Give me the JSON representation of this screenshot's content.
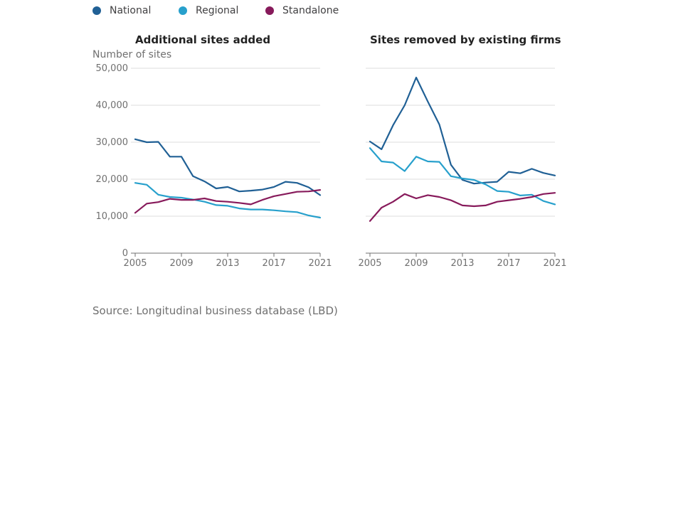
{
  "legend": [
    {
      "name": "National",
      "color": "#206095"
    },
    {
      "name": "Regional",
      "color": "#27a0cc"
    },
    {
      "name": "Standalone",
      "color": "#871a5b"
    }
  ],
  "source": "Source: Longitudinal business database (LBD)",
  "chart_data": [
    {
      "type": "line",
      "title": "Additional sites added",
      "ylabel": "Number of sites",
      "ylim": [
        0,
        50000
      ],
      "yticks": [
        0,
        10000,
        20000,
        30000,
        40000,
        50000
      ],
      "ytick_labels": [
        "0",
        "10,000",
        "20,000",
        "30,000",
        "40,000",
        "50,000"
      ],
      "xticks": [
        2005,
        2009,
        2013,
        2017,
        2021
      ],
      "x": [
        2005,
        2006,
        2007,
        2008,
        2009,
        2010,
        2011,
        2012,
        2013,
        2014,
        2015,
        2016,
        2017,
        2018,
        2019,
        2020,
        2021
      ],
      "grid": true,
      "series": [
        {
          "name": "National",
          "color": "#206095",
          "values": [
            30800,
            30000,
            30100,
            26100,
            26100,
            20800,
            19400,
            17500,
            17900,
            16700,
            16900,
            17200,
            17900,
            19300,
            19000,
            17800,
            15700
          ]
        },
        {
          "name": "Regional",
          "color": "#27a0cc",
          "values": [
            19000,
            18500,
            15800,
            15200,
            15000,
            14500,
            13900,
            13000,
            12800,
            12100,
            11800,
            11800,
            11600,
            11300,
            11100,
            10200,
            9600
          ]
        },
        {
          "name": "Standalone",
          "color": "#871a5b",
          "values": [
            10900,
            13400,
            13800,
            14700,
            14400,
            14400,
            14800,
            14100,
            13900,
            13600,
            13200,
            14400,
            15400,
            16000,
            16600,
            16700,
            17100
          ]
        }
      ]
    },
    {
      "type": "line",
      "title": "Sites removed by existing firms",
      "ylabel": "",
      "ylim": [
        0,
        50000
      ],
      "yticks": [
        0,
        10000,
        20000,
        30000,
        40000,
        50000
      ],
      "xticks": [
        2005,
        2009,
        2013,
        2017,
        2021
      ],
      "x": [
        2005,
        2006,
        2007,
        2008,
        2009,
        2010,
        2011,
        2012,
        2013,
        2014,
        2015,
        2016,
        2017,
        2018,
        2019,
        2020,
        2021
      ],
      "grid": true,
      "series": [
        {
          "name": "National",
          "color": "#206095",
          "values": [
            30200,
            28100,
            34600,
            40000,
            47500,
            41000,
            34800,
            23900,
            19800,
            18800,
            19100,
            19300,
            22000,
            21600,
            22800,
            21700,
            21000
          ]
        },
        {
          "name": "Regional",
          "color": "#27a0cc",
          "values": [
            28400,
            24800,
            24500,
            22200,
            26100,
            24800,
            24700,
            20800,
            20200,
            19800,
            18600,
            16800,
            16600,
            15600,
            15800,
            14100,
            13200
          ]
        },
        {
          "name": "Standalone",
          "color": "#871a5b",
          "values": [
            8700,
            12300,
            13900,
            16000,
            14800,
            15700,
            15200,
            14300,
            12900,
            12700,
            12900,
            13900,
            14300,
            14700,
            15200,
            16000,
            16300
          ]
        }
      ]
    }
  ]
}
